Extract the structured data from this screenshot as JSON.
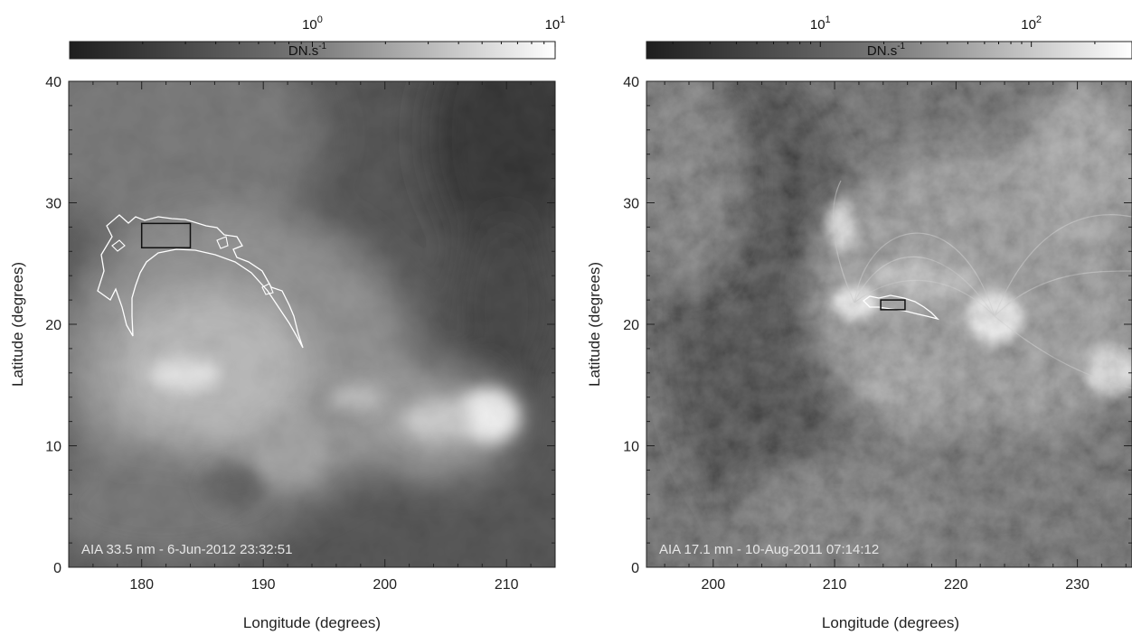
{
  "chart_data": [
    {
      "type": "heatmap",
      "caption": "AIA 33.5 nm -  6-Jun-2012 23:32:51",
      "xlabel": "Longitude (degrees)",
      "ylabel": "Latitude (degrees)",
      "xlim": [
        174,
        214
      ],
      "ylim": [
        0,
        40
      ],
      "xticks": [
        180,
        190,
        200,
        210
      ],
      "yticks": [
        0,
        10,
        20,
        30,
        40
      ],
      "colorbar": {
        "label": "DN.s",
        "label_sup": "-1",
        "scale": "log",
        "range": [
          0.1,
          10
        ],
        "ticks": [
          {
            "value": 1,
            "base": "10",
            "exp": "0"
          },
          {
            "value": 10,
            "base": "10",
            "exp": "1"
          }
        ]
      },
      "box": {
        "x0": 180.0,
        "x1": 184.0,
        "y0": 26.3,
        "y1": 28.3
      },
      "contour_color": "#ffffff"
    },
    {
      "type": "heatmap",
      "caption": "AIA 17.1 mn - 10-Aug-2011 07:14:12",
      "xlabel": "Longitude (degrees)",
      "ylabel": "Latitude (degrees)",
      "xlim": [
        194.5,
        234.5
      ],
      "ylim": [
        0,
        40
      ],
      "xticks": [
        200,
        210,
        220,
        230
      ],
      "yticks": [
        0,
        10,
        20,
        30,
        40
      ],
      "colorbar": {
        "label": "DN.s",
        "label_sup": "-1",
        "scale": "log",
        "range": [
          1.5,
          300
        ],
        "ticks": [
          {
            "value": 10,
            "base": "10",
            "exp": "1"
          },
          {
            "value": 100,
            "base": "10",
            "exp": "2"
          }
        ]
      },
      "box": {
        "x0": 213.8,
        "x1": 215.8,
        "y0": 21.2,
        "y1": 22.0
      },
      "contour_color": "#ffffff"
    }
  ]
}
